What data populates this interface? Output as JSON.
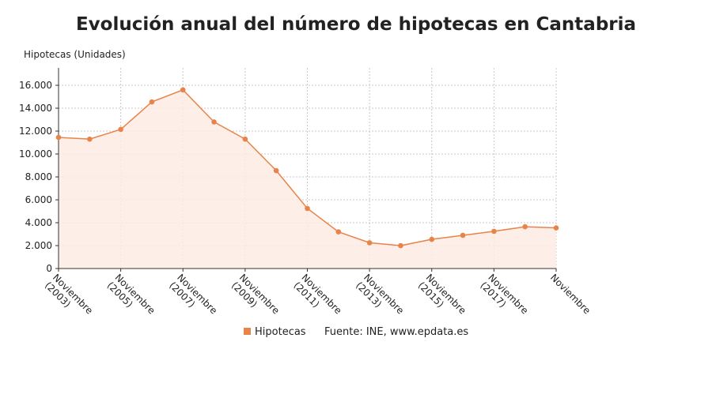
{
  "chart_data": {
    "type": "area",
    "title": "Evolución anual del número de hipotecas en Cantabria",
    "ylabel": "Hipotecas (Unidades)",
    "xlabel": "",
    "ylim": [
      0,
      16000
    ],
    "yticks": [
      "0",
      "2.000",
      "4.000",
      "6.000",
      "8.000",
      "10.000",
      "12.000",
      "14.000",
      "16.000"
    ],
    "ytick_values": [
      0,
      2000,
      4000,
      6000,
      8000,
      10000,
      12000,
      14000,
      16000
    ],
    "grid": true,
    "xtick_labels": [
      {
        "index": 0,
        "line1": "Noviembre",
        "line2": "(2003)"
      },
      {
        "index": 2,
        "line1": "Noviembre",
        "line2": "(2005)"
      },
      {
        "index": 4,
        "line1": "Noviembre",
        "line2": "(2007)"
      },
      {
        "index": 6,
        "line1": "Noviembre",
        "line2": "(2009)"
      },
      {
        "index": 8,
        "line1": "Noviembre",
        "line2": "(2011)"
      },
      {
        "index": 10,
        "line1": "Noviembre",
        "line2": "(2013)"
      },
      {
        "index": 12,
        "line1": "Noviembre",
        "line2": "(2015)"
      },
      {
        "index": 14,
        "line1": "Noviembre",
        "line2": "(2017)"
      },
      {
        "index": 16,
        "line1": "Noviembre",
        "line2": ""
      }
    ],
    "series": [
      {
        "name": "Hipotecas",
        "color": "#e8834a",
        "values": [
          11450,
          11300,
          12150,
          14550,
          15600,
          12800,
          11300,
          8550,
          5250,
          3200,
          2250,
          2000,
          2550,
          2900,
          3250,
          3650,
          3550
        ]
      }
    ],
    "legend_position": "bottom",
    "source": "Fuente: INE, www.epdata.es"
  }
}
